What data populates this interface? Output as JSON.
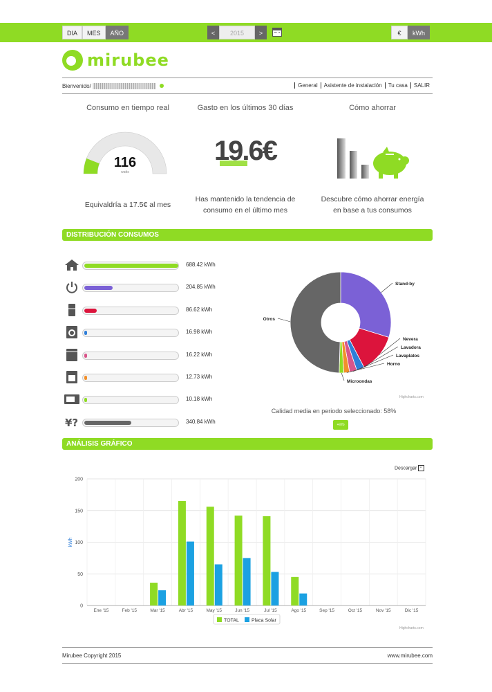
{
  "topbar": {
    "period_buttons": [
      "DIA",
      "MES",
      "AÑO"
    ],
    "active_period": "AÑO",
    "year": "2015",
    "prev": "<",
    "next": ">",
    "unit_buttons": [
      "€",
      "kWh"
    ],
    "active_unit": "kWh",
    "colors": {
      "accent": "#8fdb24"
    }
  },
  "logo": {
    "text": "mirubee"
  },
  "usernav": {
    "welcome": "Bienvenido/",
    "masked_email": "••••••@gm••• ••",
    "links": [
      "General",
      "Asistente de instalación",
      "Tu casa",
      "SALIR"
    ]
  },
  "summary": {
    "realtime": {
      "title": "Consumo en tiempo real",
      "value": "116",
      "unit": "watts",
      "note": "Equivaldría a 17.5€ al mes",
      "gauge_fraction": 0.12
    },
    "spend": {
      "title": "Gasto en los últimos 30 días",
      "value": "19.6€",
      "note_line1": "Has mantenido la tendencia de",
      "note_line2": "consumo en el último mes"
    },
    "save": {
      "title": "Cómo ahorrar",
      "note_line1": "Descubre cómo ahorrar energía",
      "note_line2": "en base a tus consumos"
    }
  },
  "sections": {
    "distribution": "DISTRIBUCIÓN CONSUMOS",
    "analysis": "ANÁLISIS GRÁFICO"
  },
  "distribution": [
    {
      "icon": "house-icon",
      "value": "688.42 kWh",
      "fraction": 1.0,
      "color": "#8fdb24"
    },
    {
      "icon": "power-icon",
      "value": "204.85 kWh",
      "fraction": 0.3,
      "color": "#7b61d6"
    },
    {
      "icon": "fridge-icon",
      "value": "86.62 kWh",
      "fraction": 0.13,
      "color": "#dc143c"
    },
    {
      "icon": "washer-icon",
      "value": "16.98 kWh",
      "fraction": 0.025,
      "color": "#2f7ed8"
    },
    {
      "icon": "dishwasher-icon",
      "value": "16.22 kWh",
      "fraction": 0.024,
      "color": "#d9558a"
    },
    {
      "icon": "oven-icon",
      "value": "12.73 kWh",
      "fraction": 0.019,
      "color": "#f28f2a"
    },
    {
      "icon": "microwave-icon",
      "value": "10.18 kWh",
      "fraction": 0.015,
      "color": "#8fdb24"
    },
    {
      "icon": "unknown-plug-icon",
      "value": "340.84 kWh",
      "fraction": 0.5,
      "color": "#666666"
    }
  ],
  "pie": {
    "slices": [
      {
        "name": "Stand-by",
        "value": 204.85,
        "color": "#7b61d6"
      },
      {
        "name": "Nevera",
        "value": 86.62,
        "color": "#dc143c"
      },
      {
        "name": "Lavadora",
        "value": 16.98,
        "color": "#2f7ed8"
      },
      {
        "name": "Lavaplatos",
        "value": 16.22,
        "color": "#d9558a"
      },
      {
        "name": "Horno",
        "value": 12.73,
        "color": "#f28f2a"
      },
      {
        "name": "Microondas",
        "value": 10.18,
        "color": "#8fdb24"
      },
      {
        "name": "Otros",
        "value": 340.84,
        "color": "#666666"
      }
    ],
    "credit": "Highcharts.com",
    "quality": "Calidad media en periodo seleccionado: 58%",
    "info_button": "+info"
  },
  "chart_data": {
    "type": "bar",
    "categories": [
      "Ene '15",
      "Feb '15",
      "Mar '15",
      "Abr '15",
      "May '15",
      "Jun '15",
      "Jul '15",
      "Ago '15",
      "Sep '15",
      "Oct '15",
      "Nov '15",
      "Dic '15"
    ],
    "series": [
      {
        "name": "TOTAL",
        "color": "#8fdb24",
        "values": [
          0,
          0,
          36,
          165,
          156,
          142,
          141,
          45,
          0,
          0,
          0,
          0
        ]
      },
      {
        "name": "Placa Solar",
        "color": "#1ba1e2",
        "values": [
          0,
          0,
          24,
          101,
          65,
          75,
          53,
          19,
          0,
          0,
          0,
          0
        ]
      }
    ],
    "ylabel": "kWh",
    "ylim": [
      0,
      200
    ],
    "yticks": [
      0,
      50,
      100,
      150,
      200
    ],
    "legend": "bottom-center",
    "grid": true
  },
  "barchart": {
    "download": "Descargar",
    "credit": "Highcharts.com"
  },
  "footer": {
    "left": "Mirubee Copyright 2015",
    "right": "www.mirubee.com"
  }
}
